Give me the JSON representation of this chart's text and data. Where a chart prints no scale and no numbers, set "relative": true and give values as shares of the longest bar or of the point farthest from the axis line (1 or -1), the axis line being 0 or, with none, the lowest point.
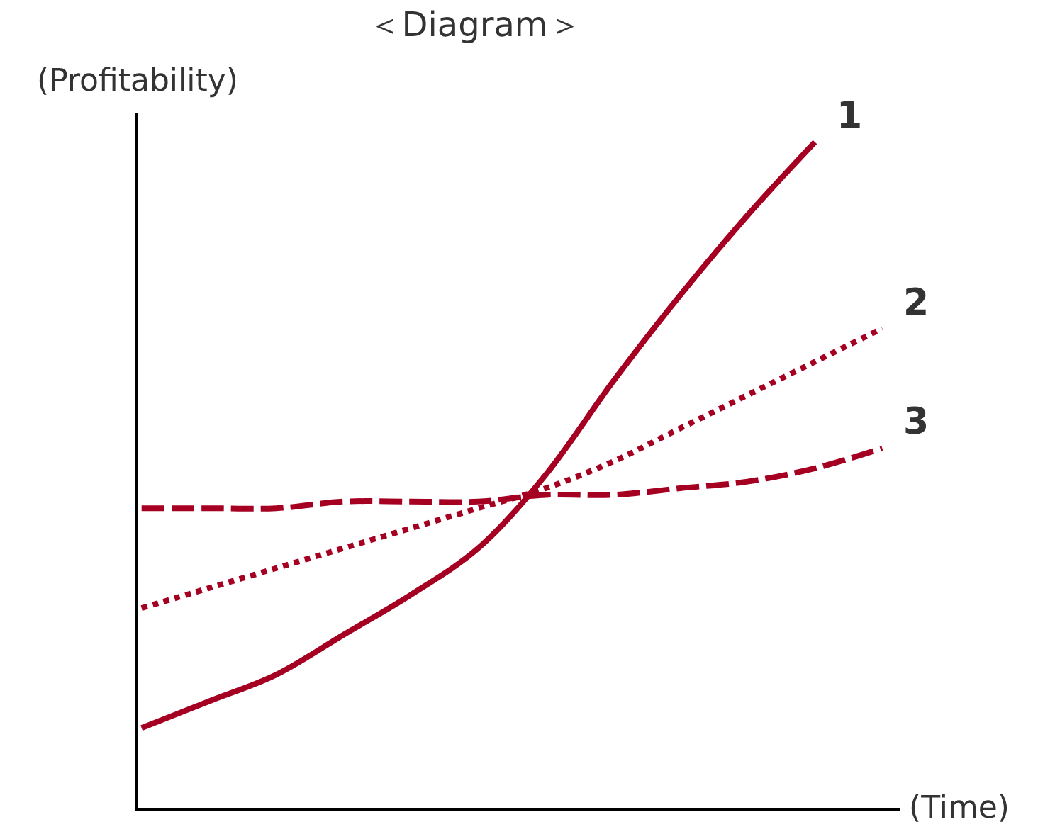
{
  "chart_data": {
    "type": "line",
    "title": "＜Diagram＞",
    "xlabel": "(Time)",
    "ylabel": "(Profitability)",
    "relative": true,
    "legend": false,
    "marker": "none",
    "categories": [
      null,
      null,
      null,
      null,
      null,
      null,
      null,
      null,
      null,
      null,
      null,
      null
    ],
    "series": [
      {
        "name": "1",
        "color": "#a50021",
        "line_style": "solid",
        "values": [
          0.12,
          0.16,
          0.2,
          0.26,
          0.32,
          0.39,
          0.5,
          0.64,
          0.77,
          0.89,
          1.0,
          null
        ]
      },
      {
        "name": "2",
        "color": "#a50021",
        "line_style": "dotted",
        "values": [
          0.3,
          0.33,
          0.36,
          0.39,
          0.42,
          0.45,
          0.48,
          0.52,
          0.57,
          0.62,
          0.67,
          0.72
        ]
      },
      {
        "name": "3",
        "color": "#a50021",
        "line_style": "dashed",
        "values": [
          0.45,
          0.45,
          0.45,
          0.46,
          0.46,
          0.46,
          0.47,
          0.47,
          0.48,
          0.49,
          0.51,
          0.54
        ]
      }
    ]
  }
}
